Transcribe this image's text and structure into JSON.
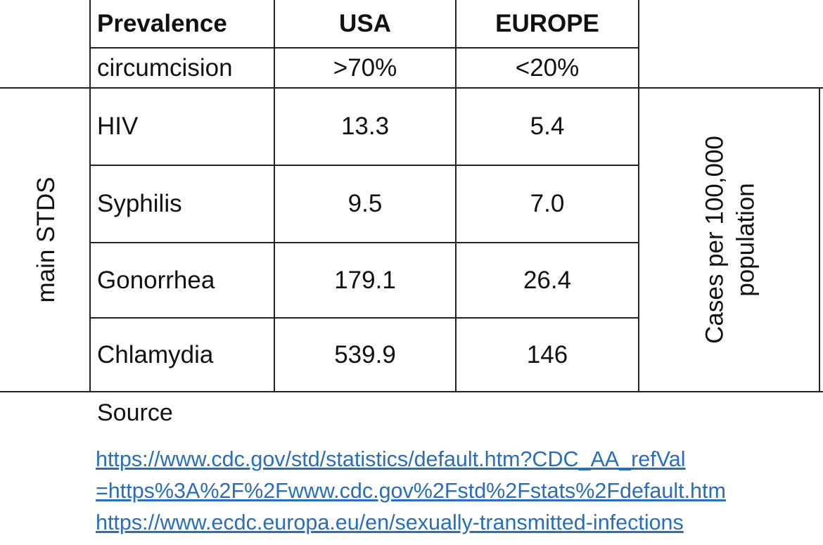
{
  "table": {
    "header": [
      "Prevalence",
      "USA",
      "EUROPE"
    ],
    "subheader": [
      "circumcision",
      ">70%",
      "<20%"
    ],
    "group_label": "main STDS",
    "unit_label": [
      "Cases per 100,000",
      "population"
    ],
    "rows": [
      [
        "HIV",
        "13.3",
        "5.4"
      ],
      [
        "Syphilis",
        "9.5",
        "7.0"
      ],
      [
        "Gonorrhea",
        "179.1",
        "26.4"
      ],
      [
        "Chlamydia",
        "539.9",
        "146"
      ]
    ]
  },
  "source": {
    "label": "Source",
    "links": [
      "https://www.cdc.gov/std/statistics/default.htm?CDC_AA_refVal",
      "=https%3A%2F%2Fwww.cdc.gov%2Fstd%2Fstats%2Fdefault.htm",
      "https://www.ecdc.europa.eu/en/sexually-transmitted-infections"
    ]
  }
}
